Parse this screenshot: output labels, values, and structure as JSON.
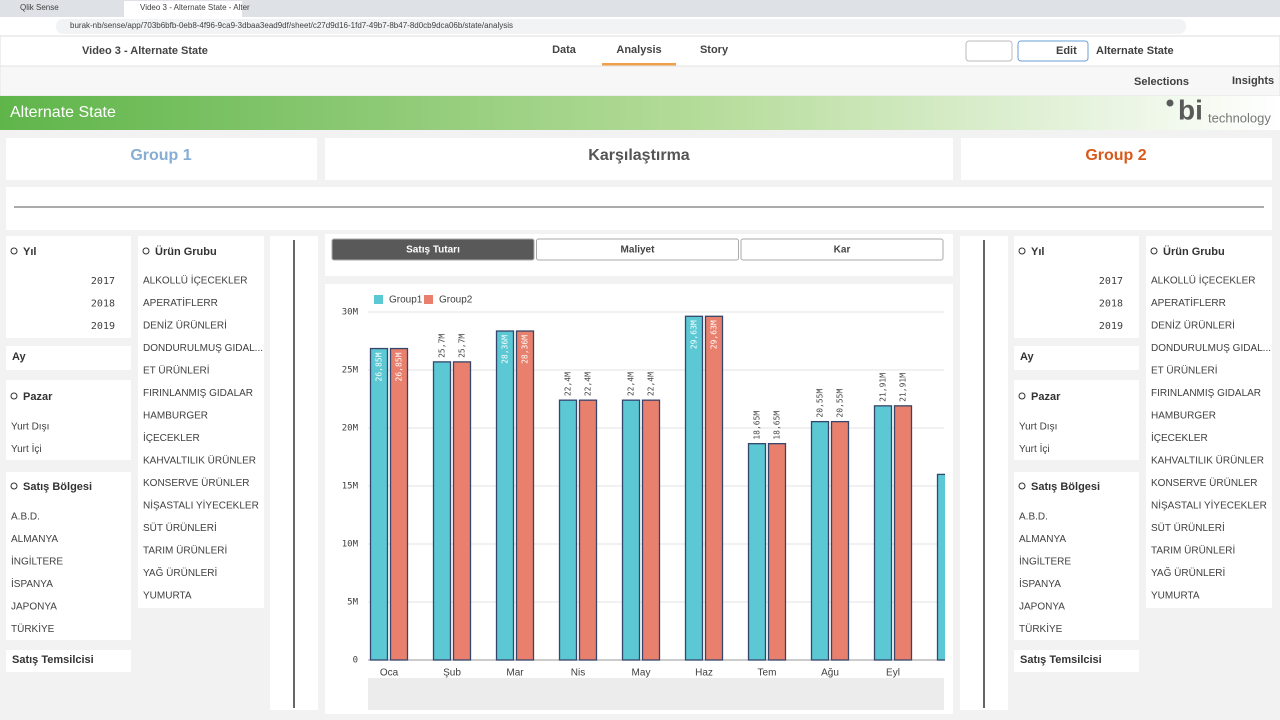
{
  "browser": {
    "tabs": [
      "Qlik Sense",
      "Video 3 - Alternate State - Alter"
    ],
    "url": "burak-nb/sense/app/703b6bfb-0eb8-4f96-9ca9-3dbaa3ead9df/sheet/c27d9d16-1fd7-49b7-8b47-8d0cb9dca06b/state/analysis"
  },
  "toolbar": {
    "app": "Video 3 - Alternate State",
    "nav": [
      "Data",
      "Analysis",
      "Story"
    ],
    "edit": "Edit",
    "state": "Alternate State",
    "selections": "Selections",
    "insights": "Insights"
  },
  "banner": {
    "title": "Alternate State",
    "logo": "bi",
    "logo_sub": "technology"
  },
  "headers": {
    "group1": "Group 1",
    "compare": "Karşılaştırma",
    "group2": "Group 2"
  },
  "filters": {
    "year_title": "Yıl",
    "years": [
      "2017",
      "2018",
      "2019"
    ],
    "month_title": "Ay",
    "market_title": "Pazar",
    "markets": [
      "Yurt Dışı",
      "Yurt İçi"
    ],
    "region_title": "Satış Bölgesi",
    "regions": [
      "A.B.D.",
      "ALMANYA",
      "İNGİLTERE",
      "İSPANYA",
      "JAPONYA",
      "TÜRKİYE"
    ],
    "rep_title": "Satış Temsilcisi",
    "product_title": "Ürün Grubu",
    "products": [
      "ALKOLLÜ İÇECEKLER",
      "APERATİFLERR",
      "DENİZ ÜRÜNLERİ",
      "DONDURULMUŞ GIDAL...",
      "ET ÜRÜNLERİ",
      "FIRINLANMIŞ GIDALAR",
      "HAMBURGER",
      "İÇECEKLER",
      "KAHVALTILIK ÜRÜNLER",
      "KONSERVE ÜRÜNLER",
      "NİŞASTALI YİYECEKLER",
      "SÜT ÜRÜNLERİ",
      "TARIM ÜRÜNLERİ",
      "YAĞ ÜRÜNLERİ",
      "YUMURTA"
    ]
  },
  "measures": [
    "Satış Tutarı",
    "Maliyet",
    "Kar"
  ],
  "chart_data": {
    "type": "bar",
    "categories": [
      "Oca",
      "Şub",
      "Mar",
      "Nis",
      "May",
      "Haz",
      "Tem",
      "Ağu",
      "Eyl",
      null
    ],
    "series": [
      {
        "name": "Group1",
        "color": "#5bc8d4",
        "values": [
          26850000,
          25700000,
          28360000,
          22400000,
          22400000,
          29630000,
          18650000,
          20550000,
          21910000,
          16000000
        ],
        "value_labels": [
          "26,85M",
          "25,7M",
          "28,36M",
          "22,4M",
          "22,4M",
          "29,63M",
          "18,65M",
          "20,55M",
          "21,91M",
          null
        ]
      },
      {
        "name": "Group2",
        "color": "#e8806d",
        "values": [
          26850000,
          25700000,
          28360000,
          22400000,
          22400000,
          29630000,
          18650000,
          20550000,
          21910000,
          null
        ],
        "value_labels": [
          "26,85M",
          "25,7M",
          "28,36M",
          "22,4M",
          "22,4M",
          "29,63M",
          "18,65M",
          "20,55M",
          "21,91M",
          null
        ]
      }
    ],
    "ylim": [
      0,
      30000000
    ],
    "yticks": [
      0,
      {
        "value": 5000000,
        "label": "5M"
      },
      {
        "value": 10000000,
        "label": "10M"
      },
      {
        "value": 15000000,
        "label": "15M"
      },
      {
        "value": 20000000,
        "label": "20M"
      },
      {
        "value": 25000000,
        "label": "25M"
      },
      {
        "value": 30000000,
        "label": "30M"
      }
    ],
    "grid": true,
    "legend": "top-left"
  }
}
